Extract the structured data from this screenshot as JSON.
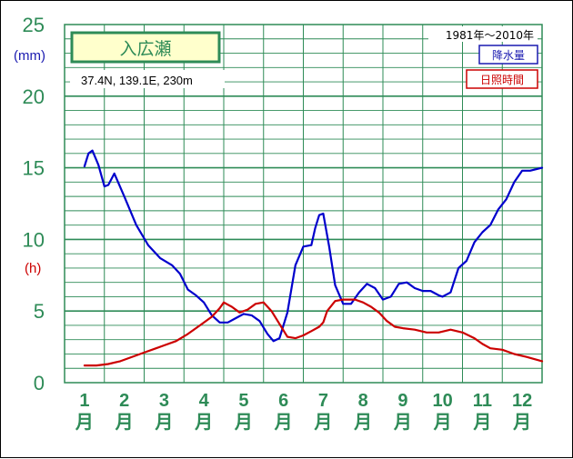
{
  "chart_data": {
    "type": "line",
    "station": "入広瀬",
    "location": "37.4N,  139.1E,  230m",
    "period": "1981年～2010年",
    "y_unit_precip": "(mm)",
    "y_unit_sun": "(h)",
    "ylim": [
      0,
      25
    ],
    "yticks": [
      "0",
      "5",
      "10",
      "15",
      "20",
      "25"
    ],
    "month_numbers": [
      "1",
      "2",
      "3",
      "4",
      "5",
      "6",
      "7",
      "8",
      "9",
      "10",
      "11",
      "12"
    ],
    "month_suffix": "月",
    "grid": true,
    "legend_position": "top-right",
    "series": [
      {
        "name": "降水量",
        "color": "#0000cc",
        "x": [
          1.0,
          1.1,
          1.2,
          1.35,
          1.5,
          1.6,
          1.75,
          2.0,
          2.3,
          2.6,
          2.9,
          3.2,
          3.4,
          3.6,
          3.8,
          4.0,
          4.2,
          4.4,
          4.6,
          4.8,
          5.0,
          5.2,
          5.4,
          5.6,
          5.75,
          5.9,
          6.1,
          6.3,
          6.5,
          6.7,
          6.8,
          6.9,
          7.0,
          7.15,
          7.3,
          7.5,
          7.7,
          7.9,
          8.1,
          8.3,
          8.5,
          8.7,
          8.9,
          9.1,
          9.3,
          9.5,
          9.7,
          9.9,
          10.0,
          10.2,
          10.4,
          10.6,
          10.8,
          11.0,
          11.2,
          11.4,
          11.6,
          11.8,
          12.0,
          12.2,
          12.5
        ],
        "values": [
          15.1,
          16.0,
          16.2,
          15.2,
          13.7,
          13.8,
          14.6,
          13.0,
          11.0,
          9.6,
          8.7,
          8.2,
          7.6,
          6.5,
          6.1,
          5.6,
          4.7,
          4.2,
          4.2,
          4.5,
          4.8,
          4.7,
          4.3,
          3.4,
          2.9,
          3.1,
          4.9,
          8.2,
          9.5,
          9.6,
          10.8,
          11.7,
          11.8,
          9.5,
          6.8,
          5.5,
          5.5,
          6.3,
          6.9,
          6.6,
          5.8,
          6.0,
          6.9,
          7.0,
          6.6,
          6.4,
          6.4,
          6.1,
          6.0,
          6.3,
          8.0,
          8.5,
          9.8,
          10.5,
          11.0,
          12.1,
          12.8,
          14.0,
          14.8,
          14.8,
          15.0
        ]
      },
      {
        "name": "日照時間",
        "color": "#cc0000",
        "x": [
          1.0,
          1.3,
          1.6,
          1.9,
          2.2,
          2.5,
          2.8,
          3.0,
          3.3,
          3.6,
          3.9,
          4.2,
          4.4,
          4.5,
          4.7,
          4.9,
          5.1,
          5.3,
          5.5,
          5.7,
          5.9,
          6.1,
          6.3,
          6.5,
          6.7,
          6.9,
          7.0,
          7.1,
          7.3,
          7.5,
          7.8,
          8.0,
          8.2,
          8.4,
          8.6,
          8.8,
          9.0,
          9.3,
          9.6,
          9.9,
          10.2,
          10.5,
          10.8,
          11.0,
          11.2,
          11.5,
          11.8,
          12.1,
          12.5
        ],
        "values": [
          1.2,
          1.2,
          1.3,
          1.5,
          1.8,
          2.1,
          2.4,
          2.6,
          2.9,
          3.4,
          4.0,
          4.6,
          5.2,
          5.6,
          5.3,
          4.9,
          5.1,
          5.5,
          5.6,
          5.0,
          4.1,
          3.2,
          3.1,
          3.3,
          3.6,
          3.9,
          4.2,
          5.0,
          5.7,
          5.8,
          5.8,
          5.6,
          5.3,
          4.9,
          4.3,
          3.9,
          3.8,
          3.7,
          3.5,
          3.5,
          3.7,
          3.5,
          3.1,
          2.7,
          2.4,
          2.3,
          2.0,
          1.8,
          1.5
        ]
      }
    ]
  }
}
